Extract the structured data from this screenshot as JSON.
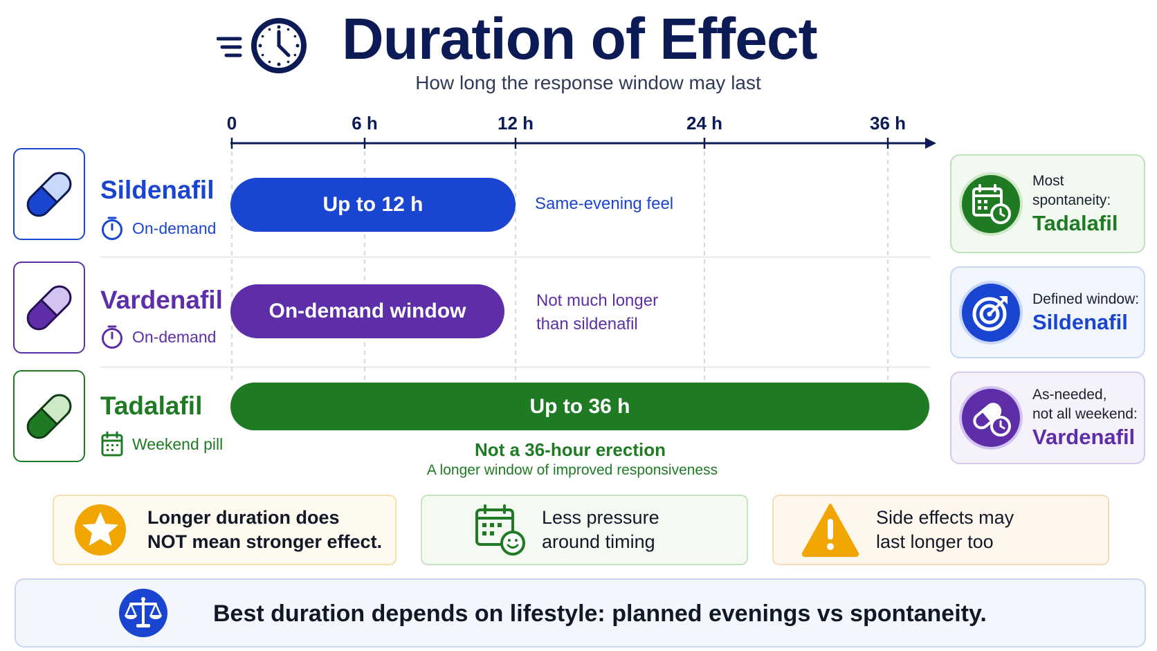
{
  "header": {
    "title": "Duration of Effect",
    "subtitle": "How long the response window may last"
  },
  "timeline": {
    "ticks": [
      "0",
      "6 h",
      "12 h",
      "24 h",
      "36 h"
    ]
  },
  "drugs": [
    {
      "name": "Sildenafil",
      "tag": "On-demand",
      "bar_label": "Up to 12 h",
      "note": "Same-evening feel",
      "color": "#1a45d0"
    },
    {
      "name": "Vardenafil",
      "tag": "On-demand",
      "bar_label": "On-demand window",
      "note_line1": "Not much longer",
      "note_line2": "than sildenafil",
      "color": "#5d2ea8"
    },
    {
      "name": "Tadalafil",
      "tag": "Weekend pill",
      "bar_label": "Up to 36 h",
      "note_title": "Not a 36-hour erection",
      "note_sub": "A longer window of improved responsiveness",
      "color": "#1f7a24"
    }
  ],
  "side_cards": [
    {
      "caption": "Most spontaneity:",
      "value": "Tadalafil",
      "icon": "calendar-clock-icon"
    },
    {
      "caption": "Defined window:",
      "value": "Sildenafil",
      "icon": "target-icon"
    },
    {
      "caption_line1": "As-needed,",
      "caption_line2": "not all weekend:",
      "value": "Vardenafil",
      "icon": "pill-clock-icon"
    }
  ],
  "notes": [
    {
      "line1": "Longer duration does",
      "line2": "NOT mean stronger effect.",
      "icon": "star-icon"
    },
    {
      "line1": "Less pressure",
      "line2": "around timing",
      "icon": "calendar-smile-icon"
    },
    {
      "line1": "Side effects may",
      "line2": "last longer too",
      "icon": "warning-icon"
    }
  ],
  "footer": {
    "text": "Best duration depends on lifestyle: planned evenings vs spontaneity.",
    "icon": "scale-icon"
  },
  "colors": {
    "navy": "#0c1a55",
    "blue": "#1a45d0",
    "purple": "#5d2ea8",
    "green": "#1f7a24",
    "amber": "#f0a500"
  }
}
